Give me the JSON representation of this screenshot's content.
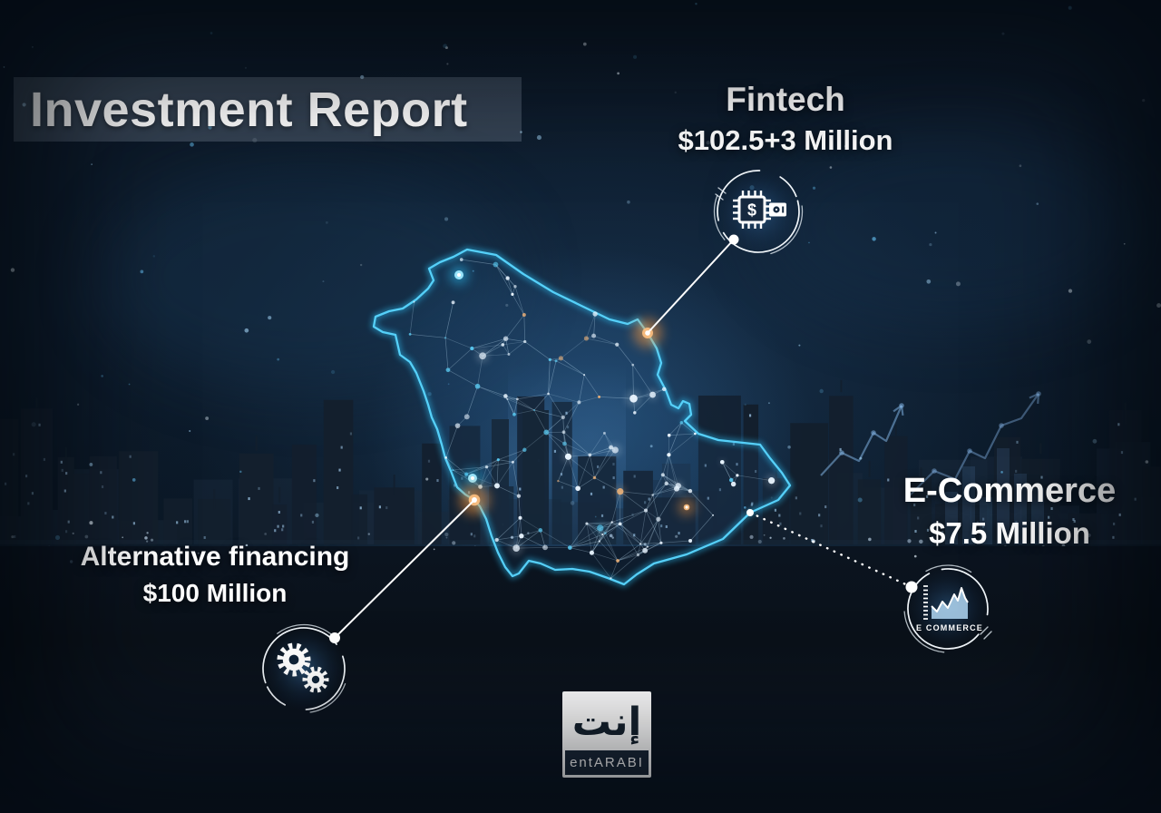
{
  "title": "Investment Report",
  "callouts": [
    {
      "id": "fintech",
      "label": "Fintech",
      "value": "$102.5+3 Million",
      "icon": "chip-dollar-icon",
      "icon_symbol": "$"
    },
    {
      "id": "e-commerce",
      "label": "E-Commerce",
      "value": "$7.5 Million",
      "icon": "growth-chart-icon",
      "icon_caption": "E COMMERCE"
    },
    {
      "id": "alternative-financing",
      "label": "Alternative financing",
      "value": "$100 Million",
      "icon": "gears-icon"
    }
  ],
  "logo": {
    "arabic": "إنت",
    "latin": "entARABI"
  },
  "map": {
    "country": "Saudi Arabia"
  },
  "colors": {
    "accent_cyan": "#45cdf7",
    "accent_orange": "#f5a35c",
    "text": "#ffffff",
    "background": "#0c1724",
    "title_bar": "rgba(150,165,182,0.28)"
  }
}
